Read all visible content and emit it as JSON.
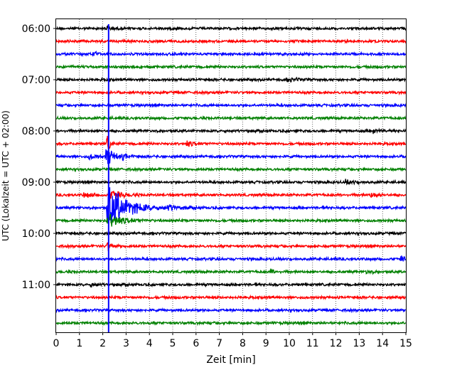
{
  "chart_data": {
    "type": "line",
    "xlabel": "Zeit  [min]",
    "ylabel": "UTC (Lokalzeit = UTC + 02:00)",
    "xlim": [
      0,
      15
    ],
    "xticks": [
      0,
      1,
      2,
      3,
      4,
      5,
      6,
      7,
      8,
      9,
      10,
      11,
      12,
      13,
      14,
      15
    ],
    "xtick_labels": [
      "0",
      "1",
      "2",
      "3",
      "4",
      "5",
      "6",
      "7",
      "8",
      "9",
      "10",
      "11",
      "12",
      "13",
      "14",
      "15"
    ],
    "ytick_labels": [
      "06:00",
      "07:00",
      "08:00",
      "09:00",
      "10:00",
      "11:00"
    ],
    "grid": "x dotted",
    "trace_interval_min": 15,
    "colors": [
      "#000000",
      "#ff0000",
      "#0000ff",
      "#008000"
    ],
    "traces": [
      {
        "start": "06:00",
        "color": "#000000"
      },
      {
        "start": "06:15",
        "color": "#ff0000"
      },
      {
        "start": "06:30",
        "color": "#0000ff"
      },
      {
        "start": "06:45",
        "color": "#008000"
      },
      {
        "start": "07:00",
        "color": "#000000"
      },
      {
        "start": "07:15",
        "color": "#ff0000"
      },
      {
        "start": "07:30",
        "color": "#0000ff"
      },
      {
        "start": "07:45",
        "color": "#008000"
      },
      {
        "start": "08:00",
        "color": "#000000"
      },
      {
        "start": "08:15",
        "color": "#ff0000"
      },
      {
        "start": "08:30",
        "color": "#0000ff"
      },
      {
        "start": "08:45",
        "color": "#008000"
      },
      {
        "start": "09:00",
        "color": "#000000"
      },
      {
        "start": "09:15",
        "color": "#ff0000"
      },
      {
        "start": "09:30",
        "color": "#0000ff"
      },
      {
        "start": "09:45",
        "color": "#008000"
      },
      {
        "start": "10:00",
        "color": "#000000"
      },
      {
        "start": "10:15",
        "color": "#ff0000"
      },
      {
        "start": "10:30",
        "color": "#0000ff"
      },
      {
        "start": "10:45",
        "color": "#008000"
      },
      {
        "start": "11:00",
        "color": "#000000"
      },
      {
        "start": "11:15",
        "color": "#ff0000"
      },
      {
        "start": "11:30",
        "color": "#0000ff"
      },
      {
        "start": "11:45",
        "color": "#008000"
      }
    ],
    "event_marker": {
      "x": 2.25,
      "color": "#0000ff"
    },
    "events": [
      {
        "trace": 0,
        "x": 2.2,
        "amp": 1.2,
        "dur": 0.1
      },
      {
        "trace": 2,
        "x": 1.6,
        "amp": 0.6,
        "dur": 0.15
      },
      {
        "trace": 4,
        "x": 9.9,
        "amp": 0.6,
        "dur": 0.3
      },
      {
        "trace": 9,
        "x": 5.6,
        "amp": 0.7,
        "dur": 0.25
      },
      {
        "trace": 8,
        "x": 13.6,
        "amp": 0.5,
        "dur": 0.3
      },
      {
        "trace": 9,
        "x": 2.2,
        "amp": 2.5,
        "dur": 0.1
      },
      {
        "trace": 10,
        "x": 1.4,
        "amp": 0.5,
        "dur": 0.4
      },
      {
        "trace": 10,
        "x": 2.15,
        "amp": 2.5,
        "dur": 0.3
      },
      {
        "trace": 10,
        "x": 2.85,
        "amp": 0.5,
        "dur": 0.15
      },
      {
        "trace": 12,
        "x": 12.4,
        "amp": 0.5,
        "dur": 0.4
      },
      {
        "trace": 13,
        "x": 1.2,
        "amp": 0.8,
        "dur": 0.3
      },
      {
        "trace": 13,
        "x": 2.3,
        "amp": 1.5,
        "dur": 0.4
      },
      {
        "trace": 13,
        "x": 13.5,
        "amp": 0.8,
        "dur": 0.25
      },
      {
        "trace": 14,
        "x": 2.2,
        "amp": 6.5,
        "dur": 0.7
      },
      {
        "trace": 14,
        "x": 4.8,
        "amp": 0.7,
        "dur": 0.3
      },
      {
        "trace": 15,
        "x": 2.2,
        "amp": 2.0,
        "dur": 0.5
      },
      {
        "trace": 17,
        "x": 2.2,
        "amp": 1.2,
        "dur": 0.2
      },
      {
        "trace": 19,
        "x": 9.2,
        "amp": 0.6,
        "dur": 0.15
      },
      {
        "trace": 19,
        "x": 13.3,
        "amp": 0.4,
        "dur": 0.2
      },
      {
        "trace": 20,
        "x": 1.5,
        "amp": 0.5,
        "dur": 0.2
      },
      {
        "trace": 18,
        "x": 14.8,
        "amp": 0.6,
        "dur": 0.3
      }
    ]
  }
}
